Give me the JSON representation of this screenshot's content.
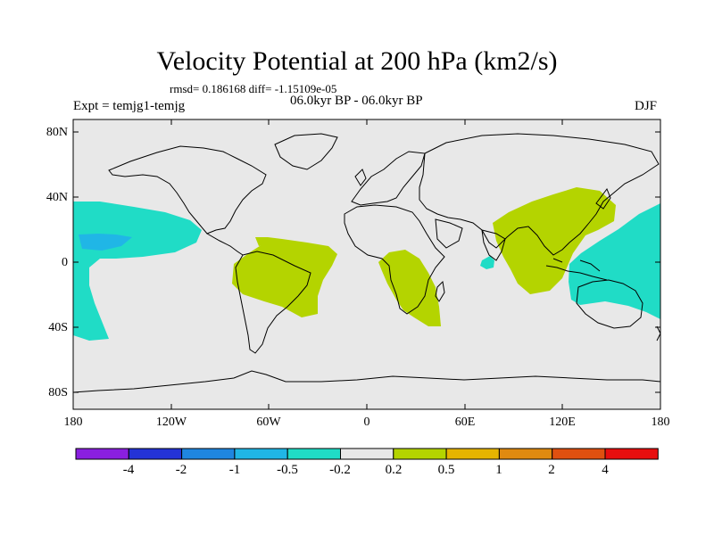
{
  "title": "Velocity Potential at 200 hPa (km2/s)",
  "stats": "rmsd= 0.186168 diff= -1.15109e-05",
  "period": "06.0kyr BP - 06.0kyr BP",
  "expt": "Expt = temjg1-temjg",
  "season": "DJF",
  "lat_labels": [
    "80N",
    "40N",
    "0",
    "40S",
    "80S"
  ],
  "lon_labels": [
    "180",
    "120W",
    "60W",
    "0",
    "60E",
    "120E",
    "180"
  ],
  "colorbar": {
    "labels": [
      "-4",
      "-2",
      "-1",
      "-0.5",
      "-0.2",
      "0.2",
      "0.5",
      "1",
      "2",
      "4"
    ],
    "colors": [
      "#8a1fe0",
      "#2433d6",
      "#1f86e0",
      "#20b6e6",
      "#20dcc6",
      "#e8e8e8",
      "#b4d400",
      "#e6b400",
      "#e08a10",
      "#e05010",
      "#e80e0e"
    ]
  },
  "map_colors": {
    "background": "#e8e8e8",
    "negative_weak": "#20dcc6",
    "negative_mid": "#20b6e6",
    "positive_weak": "#b4d400",
    "coast": "#000000"
  }
}
